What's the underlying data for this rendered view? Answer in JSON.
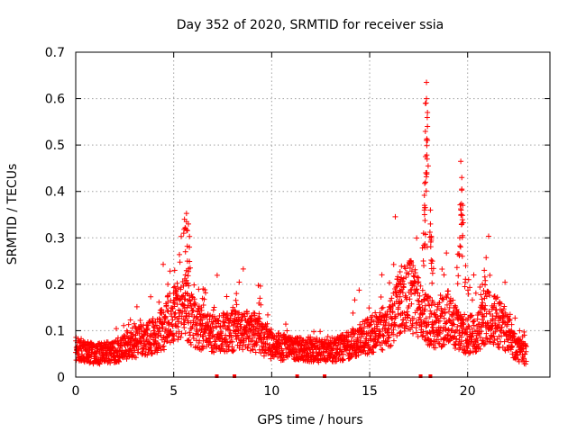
{
  "chart_data": {
    "type": "scatter",
    "title": "Day 352 of 2020, SRMTID for receiver ssia",
    "xlabel": "GPS time / hours",
    "ylabel": "SRMTID / TECUs",
    "xlim": [
      0,
      24.2
    ],
    "ylim": [
      0,
      0.7
    ],
    "xticks": [
      0,
      5,
      10,
      15,
      20
    ],
    "yticks": [
      0,
      0.1,
      0.2,
      0.3,
      0.4,
      0.5,
      0.6,
      0.7
    ],
    "xtick_labels": [
      "0",
      "5",
      "10",
      "15",
      "20"
    ],
    "ytick_labels": [
      "0",
      "0.1",
      "0.2",
      "0.3",
      "0.4",
      "0.5",
      "0.6",
      "0.7"
    ],
    "grid": true,
    "marker": "+",
    "color": "#ff0000",
    "series": [
      {
        "name": "SRMTID",
        "x_range": [
          0,
          23
        ],
        "step_hours": 0.009,
        "background_profile": [
          [
            0.0,
            0.06
          ],
          [
            1.0,
            0.05
          ],
          [
            2.0,
            0.055
          ],
          [
            3.0,
            0.075
          ],
          [
            4.0,
            0.09
          ],
          [
            4.6,
            0.11
          ],
          [
            5.0,
            0.14
          ],
          [
            5.5,
            0.15
          ],
          [
            6.0,
            0.12
          ],
          [
            6.5,
            0.1
          ],
          [
            7.0,
            0.09
          ],
          [
            8.0,
            0.1
          ],
          [
            9.0,
            0.1
          ],
          [
            10.0,
            0.07
          ],
          [
            11.0,
            0.06
          ],
          [
            12.0,
            0.06
          ],
          [
            13.0,
            0.055
          ],
          [
            14.0,
            0.07
          ],
          [
            15.0,
            0.09
          ],
          [
            15.5,
            0.1
          ],
          [
            16.0,
            0.11
          ],
          [
            16.5,
            0.16
          ],
          [
            17.0,
            0.18
          ],
          [
            17.5,
            0.15
          ],
          [
            18.0,
            0.12
          ],
          [
            18.5,
            0.11
          ],
          [
            19.0,
            0.13
          ],
          [
            19.5,
            0.1
          ],
          [
            20.0,
            0.09
          ],
          [
            20.5,
            0.1
          ],
          [
            21.0,
            0.13
          ],
          [
            21.5,
            0.12
          ],
          [
            22.0,
            0.1
          ],
          [
            22.5,
            0.06
          ],
          [
            23.0,
            0.05
          ]
        ],
        "spikes": [
          {
            "x": 4.7,
            "y": 0.2
          },
          {
            "x": 5.05,
            "y": 0.23
          },
          {
            "x": 5.55,
            "y": 0.34
          },
          {
            "x": 5.65,
            "y": 0.335
          },
          {
            "x": 5.75,
            "y": 0.33
          },
          {
            "x": 5.8,
            "y": 0.28
          },
          {
            "x": 5.7,
            "y": 0.25
          },
          {
            "x": 5.6,
            "y": 0.22
          },
          {
            "x": 6.5,
            "y": 0.19
          },
          {
            "x": 8.2,
            "y": 0.18
          },
          {
            "x": 9.4,
            "y": 0.17
          },
          {
            "x": 16.6,
            "y": 0.21
          },
          {
            "x": 17.1,
            "y": 0.25
          },
          {
            "x": 17.9,
            "y": 0.635
          },
          {
            "x": 17.9,
            "y": 0.6
          },
          {
            "x": 17.95,
            "y": 0.57
          },
          {
            "x": 17.95,
            "y": 0.54
          },
          {
            "x": 17.9,
            "y": 0.51
          },
          {
            "x": 17.85,
            "y": 0.475
          },
          {
            "x": 17.85,
            "y": 0.42
          },
          {
            "x": 17.8,
            "y": 0.37
          },
          {
            "x": 17.8,
            "y": 0.35
          },
          {
            "x": 17.75,
            "y": 0.31
          },
          {
            "x": 18.1,
            "y": 0.36
          },
          {
            "x": 18.1,
            "y": 0.33
          },
          {
            "x": 18.15,
            "y": 0.3
          },
          {
            "x": 18.2,
            "y": 0.25
          },
          {
            "x": 19.65,
            "y": 0.465
          },
          {
            "x": 19.7,
            "y": 0.43
          },
          {
            "x": 19.7,
            "y": 0.405
          },
          {
            "x": 19.75,
            "y": 0.37
          },
          {
            "x": 19.7,
            "y": 0.33
          },
          {
            "x": 19.6,
            "y": 0.3
          },
          {
            "x": 19.5,
            "y": 0.265
          },
          {
            "x": 19.9,
            "y": 0.24
          },
          {
            "x": 20.05,
            "y": 0.21
          },
          {
            "x": 20.85,
            "y": 0.23
          },
          {
            "x": 20.75,
            "y": 0.2
          }
        ],
        "zero_markers": [
          7.2,
          8.1,
          11.3,
          12.7,
          17.6,
          18.1
        ]
      }
    ]
  }
}
